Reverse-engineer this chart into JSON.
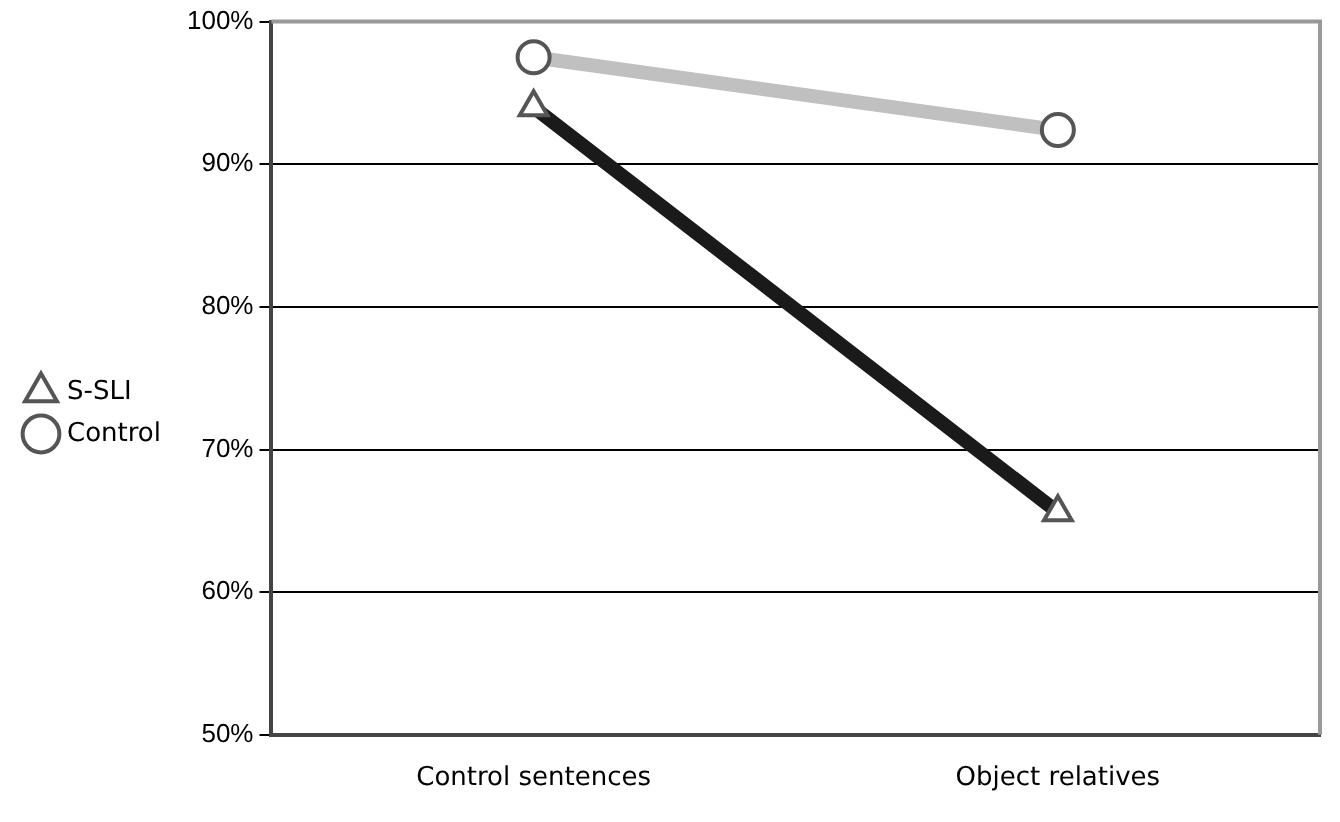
{
  "chart_data": {
    "type": "line",
    "categories": [
      "Control sentences",
      "Object relatives"
    ],
    "series": [
      {
        "name": "S-SLI",
        "color": "#1a1a1a",
        "marker": "triangle",
        "values": [
          94.0,
          65.6
        ]
      },
      {
        "name": "Control",
        "color": "#c0c0c0",
        "marker": "circle",
        "values": [
          97.5,
          92.4
        ]
      }
    ],
    "ylim": [
      50,
      100
    ],
    "yticks": [
      {
        "value": 50,
        "label": "50%"
      },
      {
        "value": 60,
        "label": "60%"
      },
      {
        "value": 70,
        "label": "70%"
      },
      {
        "value": 80,
        "label": "80%"
      },
      {
        "value": 90,
        "label": "90%"
      },
      {
        "value": 100,
        "label": "100%"
      }
    ],
    "grid": "y",
    "legend": "left"
  }
}
